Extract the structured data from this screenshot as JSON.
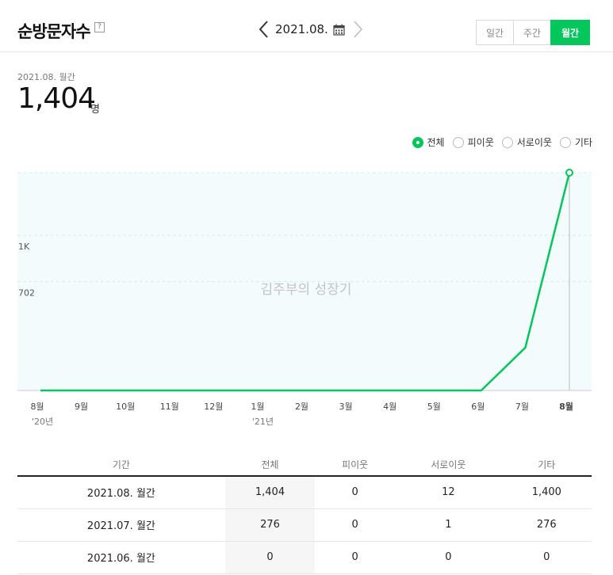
{
  "header": {
    "title": "순방문자수",
    "help": "?",
    "date": "2021.08.",
    "tabs": [
      {
        "label": "일간",
        "active": false
      },
      {
        "label": "주간",
        "active": false
      },
      {
        "label": "월간",
        "active": true
      }
    ]
  },
  "summary": {
    "label": "2021.08. 월간",
    "value": "1,404",
    "unit": "명"
  },
  "filters": [
    {
      "label": "전체",
      "selected": true
    },
    {
      "label": "피이웃",
      "selected": false
    },
    {
      "label": "서로이웃",
      "selected": false
    },
    {
      "label": "기타",
      "selected": false
    }
  ],
  "chart_data": {
    "type": "line",
    "watermark": "김주부의 성장기",
    "x": [
      "8월",
      "9월",
      "10월",
      "11월",
      "12월",
      "1월",
      "2월",
      "3월",
      "4월",
      "5월",
      "6월",
      "7월",
      "8월"
    ],
    "year_labels": [
      {
        "index": 0,
        "label": "'20년"
      },
      {
        "index": 5,
        "label": "'21년"
      }
    ],
    "y_ticks": [
      {
        "value": 1000,
        "label": "1K"
      },
      {
        "value": 702,
        "label": "702"
      }
    ],
    "series": [
      {
        "values": [
          0,
          0,
          0,
          0,
          0,
          0,
          0,
          0,
          0,
          0,
          0,
          276,
          1404
        ]
      }
    ],
    "colors": {
      "line": "#03c75a",
      "area": "#f4fbfd",
      "grid": "#d6ecf0"
    }
  },
  "table": {
    "headers": [
      "기간",
      "전체",
      "피이웃",
      "서로이웃",
      "기타"
    ],
    "rows": [
      [
        "2021.08. 월간",
        "1,404",
        "0",
        "12",
        "1,400"
      ],
      [
        "2021.07. 월간",
        "276",
        "0",
        "1",
        "276"
      ],
      [
        "2021.06. 월간",
        "0",
        "0",
        "0",
        "0"
      ]
    ]
  }
}
